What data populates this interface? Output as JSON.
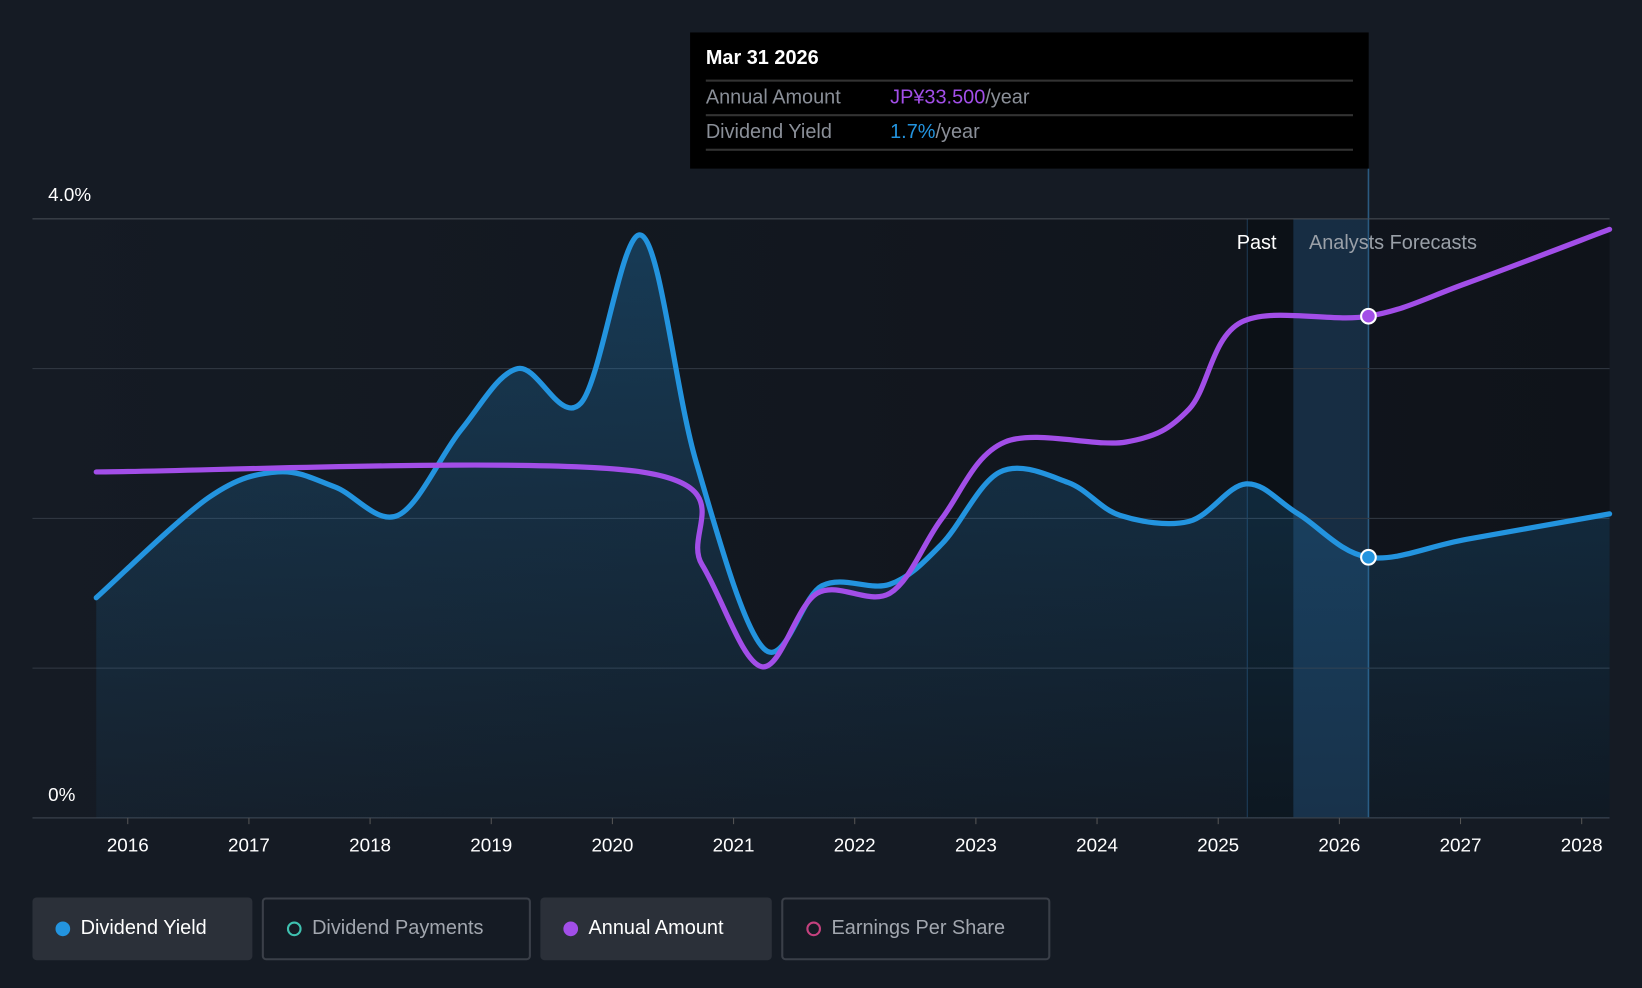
{
  "tooltip": {
    "date": "Mar 31 2026",
    "rows": [
      {
        "label": "Annual Amount",
        "value": "JP¥33.500",
        "suffix": "/year",
        "color": "#a24ee8"
      },
      {
        "label": "Dividend Yield",
        "value": "1.7%",
        "suffix": "/year",
        "color": "#2394df"
      }
    ]
  },
  "legend": [
    {
      "label": "Dividend Yield",
      "active": true,
      "color": "#2394df"
    },
    {
      "label": "Dividend Payments",
      "active": false,
      "color": "#3fc1b0"
    },
    {
      "label": "Annual Amount",
      "active": true,
      "color": "#a24ee8"
    },
    {
      "label": "Earnings Per Share",
      "active": false,
      "color": "#c4417e"
    }
  ],
  "chart_data": {
    "type": "line",
    "title": "",
    "xlabel": "",
    "ylabel": "Dividend Yield",
    "ylim": [
      0,
      4.0
    ],
    "y_tick_labels": [
      "0%",
      "4.0%"
    ],
    "x_ticks": [
      2016,
      2017,
      2018,
      2019,
      2020,
      2021,
      2022,
      2023,
      2024,
      2025,
      2026,
      2027,
      2028
    ],
    "xlim": [
      2015.5,
      2028.25
    ],
    "regions": {
      "past_label": "Past",
      "forecast_label": "Analysts Forecasts",
      "past_start": 2025.24,
      "forecast_start": 2025.62,
      "current": 2026.24
    },
    "series": [
      {
        "name": "Dividend Yield",
        "unit": "%",
        "color": "#2394df",
        "area": true,
        "x": [
          2015.74,
          2016.67,
          2017.24,
          2017.71,
          2018.23,
          2018.75,
          2019.22,
          2019.74,
          2020.24,
          2020.69,
          2021.25,
          2021.73,
          2022.29,
          2022.72,
          2023.2,
          2023.76,
          2024.19,
          2024.76,
          2025.23,
          2025.66,
          2026.24,
          2027.05,
          2028.23
        ],
        "y": [
          1.47,
          2.14,
          2.31,
          2.21,
          2.02,
          2.59,
          3.0,
          2.77,
          3.89,
          2.38,
          1.13,
          1.55,
          1.56,
          1.83,
          2.31,
          2.24,
          2.02,
          1.98,
          2.23,
          2.03,
          1.74,
          1.86,
          2.03
        ]
      },
      {
        "name": "Annual Amount",
        "unit": "JPY",
        "color": "#a24ee8",
        "area": false,
        "x": [
          2015.74,
          2020.24,
          2020.74,
          2021.23,
          2021.69,
          2022.29,
          2022.72,
          2023.24,
          2024.24,
          2024.76,
          2025.19,
          2026.24,
          2027.05,
          2028.23
        ],
        "y": [
          23.1,
          23.1,
          16.9,
          10.1,
          15.0,
          15.0,
          20.0,
          25.1,
          25.1,
          27.3,
          33.1,
          33.5,
          35.7,
          39.3
        ]
      }
    ]
  }
}
